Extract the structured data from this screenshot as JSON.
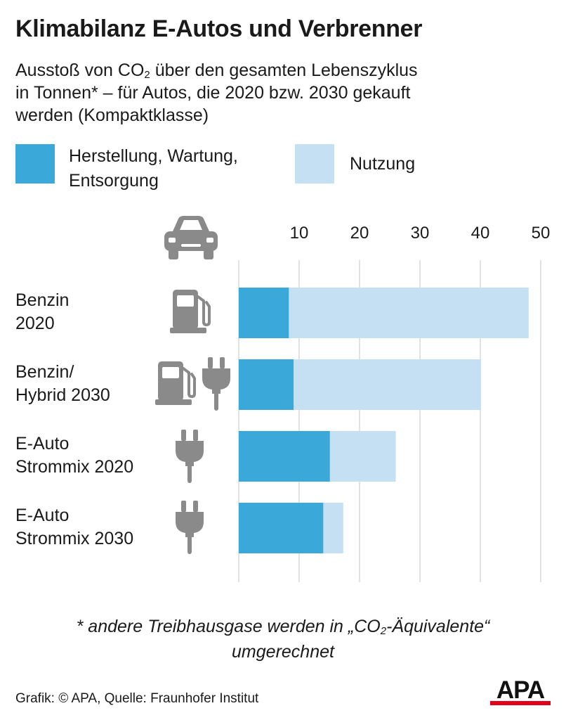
{
  "header": {
    "title": "Klimabilanz E-Autos und Verbrenner",
    "subtitle_line1_pre": "Ausstoß von CO",
    "subtitle_line1_sub": "2",
    "subtitle_line1_post": " über den gesamten Lebenszyklus",
    "subtitle_line2": "in Tonnen* – für Autos, die 2020 bzw. 2030 gekauft",
    "subtitle_line3": "werden (Kompaktklasse)"
  },
  "legend": {
    "item1_line1": "Herstellung, Wartung,",
    "item1_line2": "Entsorgung",
    "item1_color": "#3aa8d8",
    "item2": "Nutzung",
    "item2_color": "#c4e0f2"
  },
  "chart_data": {
    "type": "bar",
    "orientation": "horizontal",
    "stacked": true,
    "categories": [
      [
        "Benzin",
        "2020"
      ],
      [
        "Benzin/",
        "Hybrid 2030"
      ],
      [
        "E-Auto",
        "Strommix 2020"
      ],
      [
        "E-Auto",
        "Strommix 2030"
      ]
    ],
    "category_icons": [
      [
        "fuel-pump-icon"
      ],
      [
        "fuel-pump-icon",
        "plug-icon"
      ],
      [
        "plug-icon"
      ],
      [
        "plug-icon"
      ]
    ],
    "series": [
      {
        "name": "Herstellung, Wartung, Entsorgung",
        "color": "#3aa8d8",
        "values": [
          8.3,
          9.1,
          15.1,
          14.0
        ]
      },
      {
        "name": "Nutzung",
        "color": "#c4e0f2",
        "values": [
          39.7,
          31.0,
          10.9,
          3.3
        ]
      }
    ],
    "xlim": [
      0,
      50
    ],
    "xticks": [
      10,
      20,
      30,
      40,
      50
    ],
    "grid": true,
    "axis_position": "top",
    "header_icon": "car-icon"
  },
  "footnote": {
    "pre": "* andere Treibhausgase werden in „CO",
    "sub": "2",
    "post": "-Äquivalente“",
    "line2": "umgerechnet"
  },
  "source": "Grafik: © APA, Quelle: Fraunhofer Institut",
  "logo": "APA"
}
